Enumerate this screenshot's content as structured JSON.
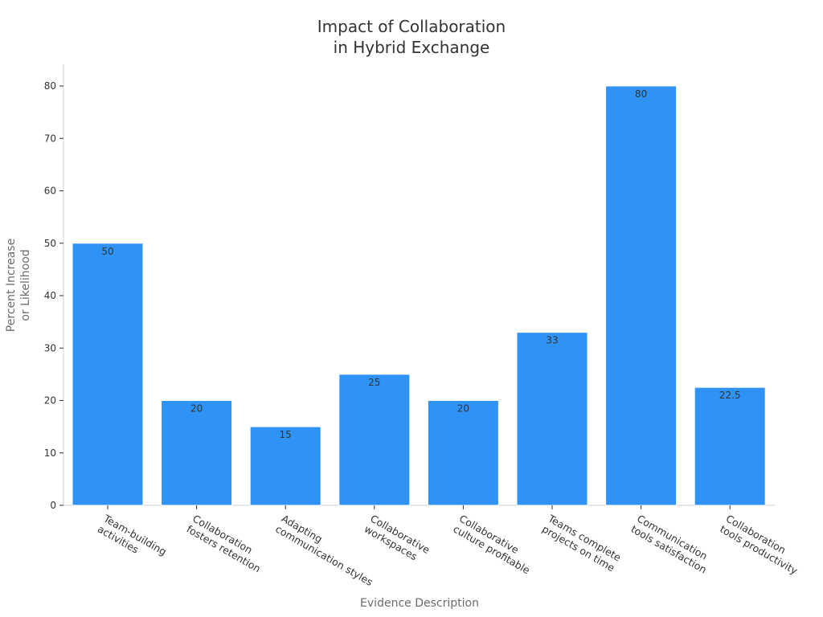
{
  "chart_data": {
    "type": "bar",
    "title_lines": [
      "Impact of Collaboration",
      "in Hybrid Exchange"
    ],
    "xlabel": "Evidence Description",
    "ylabel_lines": [
      "Percent Increase",
      "or Likelihood"
    ],
    "ylim": [
      0,
      80
    ],
    "yticks": [
      0,
      10,
      20,
      30,
      40,
      50,
      60,
      70,
      80
    ],
    "categories": [
      [
        "Team-building",
        "activities"
      ],
      [
        "Collaboration",
        "fosters retention"
      ],
      [
        "Adapting",
        "communication styles"
      ],
      [
        "Collaborative",
        "workspaces"
      ],
      [
        "Collaborative",
        "culture profitable"
      ],
      [
        "Teams complete",
        "projects on time"
      ],
      [
        "Communication",
        "tools satisfaction"
      ],
      [
        "Collaboration",
        "tools productivity"
      ]
    ],
    "values": [
      50,
      20,
      15,
      25,
      20,
      33,
      80,
      22.5
    ],
    "value_labels": [
      "50",
      "20",
      "15",
      "25",
      "20",
      "33",
      "80",
      "22.5"
    ],
    "bar_color": "#2e93f5",
    "grid": false
  }
}
